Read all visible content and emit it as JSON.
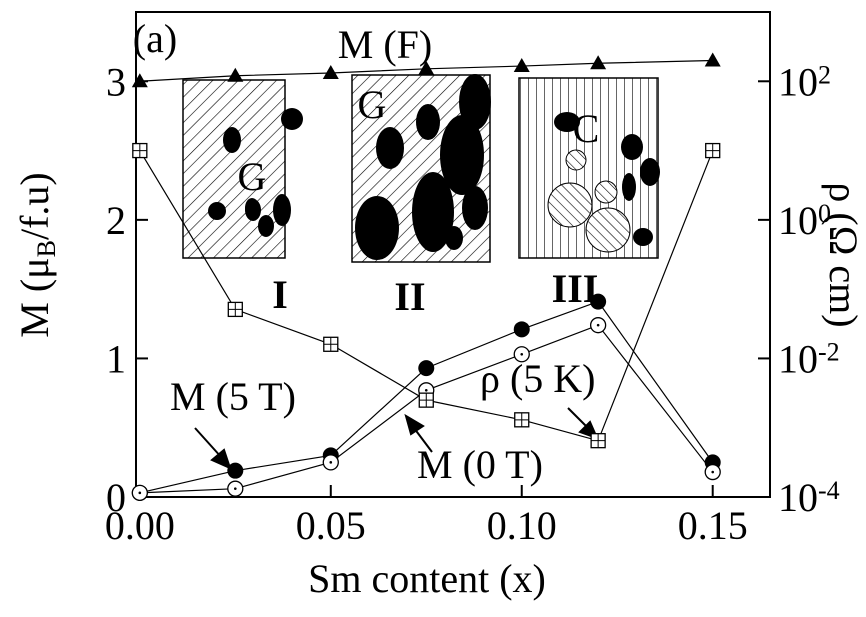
{
  "chart_data": {
    "type": "line",
    "x": [
      0,
      0.025,
      0.05,
      0.075,
      0.1,
      0.12,
      0.15
    ],
    "series": [
      {
        "name": "M (F)",
        "color": "#000000",
        "marker": "triangle",
        "values": [
          3.0,
          3.04,
          3.06,
          3.09,
          3.11,
          3.13,
          3.15
        ]
      },
      {
        "name": "M (5 T)",
        "color": "#000000",
        "marker": "filled-circle",
        "values": [
          0.03,
          0.19,
          0.3,
          0.93,
          1.21,
          1.41,
          0.25
        ]
      },
      {
        "name": "M (0 T)",
        "color": "#000000",
        "marker": "open-circle",
        "values": [
          0.03,
          0.06,
          0.25,
          0.77,
          1.03,
          1.24,
          0.18
        ]
      },
      {
        "name": "ρ (5 K)",
        "color": "#000000",
        "marker": "crossed-square",
        "axis": "y2",
        "values": [
          10,
          0.051,
          0.016,
          0.0025,
          0.0013,
          0.00065,
          10
        ]
      }
    ],
    "xlabel": "Sm content (x)",
    "ylabel": "M (μ_B/f.u)",
    "y2label": "ρ (Ω cm)",
    "xlim": [
      -0.001,
      0.165
    ],
    "xticks": [
      {
        "value": 0,
        "label": "0.00"
      },
      {
        "value": 0.05,
        "label": "0.05"
      },
      {
        "value": 0.1,
        "label": "0.10"
      },
      {
        "value": 0.15,
        "label": "0.15"
      }
    ],
    "ylim": [
      0,
      3.5
    ],
    "yticks": [
      0,
      1,
      2,
      3
    ],
    "y2lim": [
      0.0001,
      1000
    ],
    "y2scale": "log",
    "y2ticks": [
      {
        "value": 100,
        "label": "10^2"
      },
      {
        "value": 1,
        "label": "10^0"
      },
      {
        "value": 0.01,
        "label": "10^-2"
      },
      {
        "value": 0.0001,
        "label": "10^-4"
      }
    ],
    "annotations": [
      "(a)",
      "G",
      "G",
      "C",
      "I",
      "II",
      "III"
    ]
  }
}
